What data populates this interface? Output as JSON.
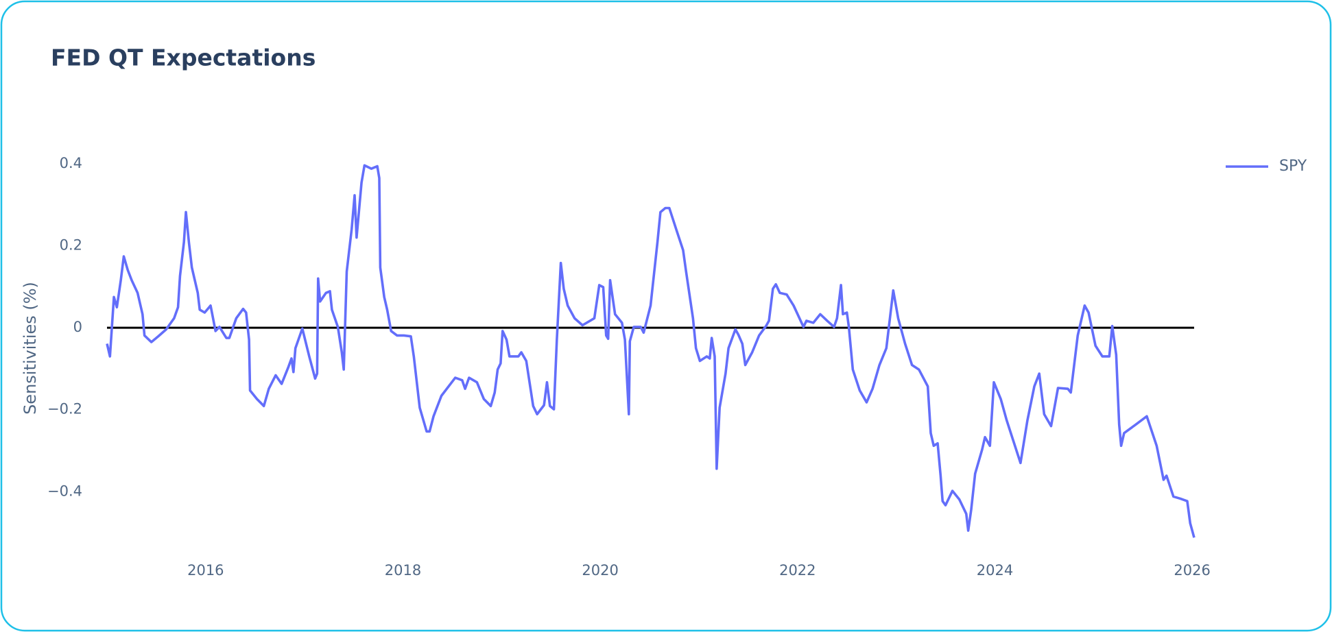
{
  "chart_data": {
    "type": "line",
    "title": "FED QT Expectations",
    "y_label": "Sensitivities (%)",
    "x": [
      2015.0,
      2015.03,
      2015.07,
      2015.1,
      2015.14,
      2015.17,
      2015.21,
      2015.25,
      2015.31,
      2015.36,
      2015.38,
      2015.45,
      2015.52,
      2015.6,
      2015.68,
      2015.72,
      2015.74,
      2015.78,
      2015.8,
      2015.83,
      2015.86,
      2015.92,
      2015.94,
      2015.99,
      2016.05,
      2016.1,
      2016.14,
      2016.21,
      2016.24,
      2016.31,
      2016.38,
      2016.41,
      2016.44,
      2016.45,
      2016.52,
      2016.59,
      2016.64,
      2016.71,
      2016.77,
      2016.84,
      2016.87,
      2016.89,
      2016.91,
      2016.98,
      2017.05,
      2017.11,
      2017.13,
      2017.14,
      2017.16,
      2017.22,
      2017.26,
      2017.28,
      2017.34,
      2017.38,
      2017.4,
      2017.43,
      2017.48,
      2017.51,
      2017.53,
      2017.58,
      2017.61,
      2017.68,
      2017.74,
      2017.76,
      2017.77,
      2017.81,
      2017.84,
      2017.88,
      2017.94,
      2018.01,
      2018.08,
      2018.11,
      2018.17,
      2018.24,
      2018.27,
      2018.31,
      2018.39,
      2018.53,
      2018.6,
      2018.63,
      2018.67,
      2018.75,
      2018.82,
      2018.89,
      2018.93,
      2018.96,
      2018.99,
      2019.01,
      2019.05,
      2019.08,
      2019.17,
      2019.2,
      2019.25,
      2019.32,
      2019.36,
      2019.43,
      2019.46,
      2019.49,
      2019.53,
      2019.56,
      2019.6,
      2019.63,
      2019.67,
      2019.74,
      2019.82,
      2019.94,
      2019.99,
      2020.03,
      2020.06,
      2020.08,
      2020.1,
      2020.15,
      2020.22,
      2020.25,
      2020.29,
      2020.3,
      2020.34,
      2020.41,
      2020.44,
      2020.51,
      2020.58,
      2020.61,
      2020.66,
      2020.7,
      2020.77,
      2020.84,
      2020.87,
      2020.94,
      2020.97,
      2021.01,
      2021.08,
      2021.11,
      2021.13,
      2021.16,
      2021.18,
      2021.21,
      2021.27,
      2021.3,
      2021.37,
      2021.4,
      2021.44,
      2021.47,
      2021.54,
      2021.61,
      2021.68,
      2021.71,
      2021.75,
      2021.78,
      2021.82,
      2021.89,
      2021.96,
      2022.06,
      2022.09,
      2022.16,
      2022.23,
      2022.3,
      2022.37,
      2022.4,
      2022.44,
      2022.46,
      2022.5,
      2022.52,
      2022.56,
      2022.63,
      2022.7,
      2022.76,
      2022.83,
      2022.9,
      2022.97,
      2023.02,
      2023.09,
      2023.16,
      2023.23,
      2023.32,
      2023.35,
      2023.38,
      2023.42,
      2023.45,
      2023.47,
      2023.5,
      2023.57,
      2023.64,
      2023.71,
      2023.73,
      2023.76,
      2023.8,
      2023.87,
      2023.9,
      2023.95,
      2023.99,
      2024.06,
      2024.12,
      2024.19,
      2024.26,
      2024.33,
      2024.4,
      2024.45,
      2024.5,
      2024.57,
      2024.64,
      2024.74,
      2024.77,
      2024.84,
      2024.91,
      2024.95,
      2025.02,
      2025.09,
      2025.16,
      2025.19,
      2025.23,
      2025.26,
      2025.28,
      2025.31,
      2025.43,
      2025.54,
      2025.64,
      2025.71,
      2025.74,
      2025.81,
      2025.88,
      2025.95,
      2025.98,
      2026.02
    ],
    "series": [
      {
        "name": "SPY",
        "color": "#636efa",
        "values": [
          -0.039,
          -0.07,
          0.075,
          0.05,
          0.116,
          0.174,
          0.141,
          0.116,
          0.085,
          0.033,
          -0.019,
          -0.035,
          -0.021,
          -0.004,
          0.023,
          0.05,
          0.126,
          0.209,
          0.282,
          0.209,
          0.147,
          0.085,
          0.044,
          0.037,
          0.054,
          -0.008,
          0.002,
          -0.025,
          -0.025,
          0.023,
          0.046,
          0.037,
          -0.029,
          -0.153,
          -0.174,
          -0.191,
          -0.149,
          -0.116,
          -0.137,
          -0.095,
          -0.075,
          -0.108,
          -0.05,
          -0.002,
          -0.07,
          -0.124,
          -0.112,
          0.12,
          0.064,
          0.085,
          0.089,
          0.044,
          0.002,
          -0.06,
          -0.102,
          0.137,
          0.24,
          0.323,
          0.22,
          0.354,
          0.396,
          0.388,
          0.394,
          0.365,
          0.147,
          0.075,
          0.044,
          -0.008,
          -0.019,
          -0.019,
          -0.021,
          -0.07,
          -0.195,
          -0.253,
          -0.253,
          -0.216,
          -0.166,
          -0.122,
          -0.128,
          -0.149,
          -0.122,
          -0.133,
          -0.174,
          -0.191,
          -0.158,
          -0.102,
          -0.087,
          -0.008,
          -0.029,
          -0.07,
          -0.07,
          -0.06,
          -0.081,
          -0.191,
          -0.211,
          -0.189,
          -0.133,
          -0.191,
          -0.199,
          -0.029,
          0.158,
          0.095,
          0.054,
          0.023,
          0.006,
          0.023,
          0.104,
          0.099,
          -0.019,
          -0.027,
          0.116,
          0.033,
          0.012,
          -0.029,
          -0.211,
          -0.033,
          0.002,
          0.002,
          -0.012,
          0.054,
          0.209,
          0.282,
          0.292,
          0.292,
          0.24,
          0.189,
          0.137,
          0.023,
          -0.05,
          -0.081,
          -0.07,
          -0.075,
          -0.025,
          -0.07,
          -0.344,
          -0.195,
          -0.112,
          -0.05,
          -0.004,
          -0.017,
          -0.039,
          -0.091,
          -0.06,
          -0.019,
          0.004,
          0.017,
          0.095,
          0.106,
          0.085,
          0.081,
          0.054,
          0.002,
          0.017,
          0.012,
          0.033,
          0.017,
          0.002,
          0.023,
          0.104,
          0.033,
          0.037,
          0.002,
          -0.102,
          -0.153,
          -0.182,
          -0.149,
          -0.091,
          -0.05,
          0.091,
          0.023,
          -0.039,
          -0.091,
          -0.102,
          -0.143,
          -0.257,
          -0.288,
          -0.282,
          -0.361,
          -0.423,
          -0.433,
          -0.398,
          -0.419,
          -0.454,
          -0.495,
          -0.444,
          -0.356,
          -0.298,
          -0.267,
          -0.288,
          -0.133,
          -0.174,
          -0.226,
          -0.278,
          -0.33,
          -0.226,
          -0.143,
          -0.112,
          -0.211,
          -0.24,
          -0.147,
          -0.149,
          -0.158,
          -0.019,
          0.054,
          0.037,
          -0.044,
          -0.07,
          -0.07,
          0.004,
          -0.066,
          -0.236,
          -0.288,
          -0.257,
          -0.236,
          -0.216,
          -0.288,
          -0.371,
          -0.361,
          -0.412,
          -0.417,
          -0.423,
          -0.477,
          -0.512
        ]
      }
    ],
    "xlim": [
      2015.0,
      2026.02
    ],
    "xticks": [
      2016,
      2018,
      2020,
      2022,
      2024,
      2026
    ],
    "ylim": [
      -0.54,
      0.44
    ],
    "yticks": [
      {
        "value": -0.4,
        "label": "−0.4"
      },
      {
        "value": -0.2,
        "label": "−0.2"
      },
      0,
      0.2,
      0.4
    ],
    "grid": false,
    "zeroline": true,
    "legend": "top-right"
  }
}
